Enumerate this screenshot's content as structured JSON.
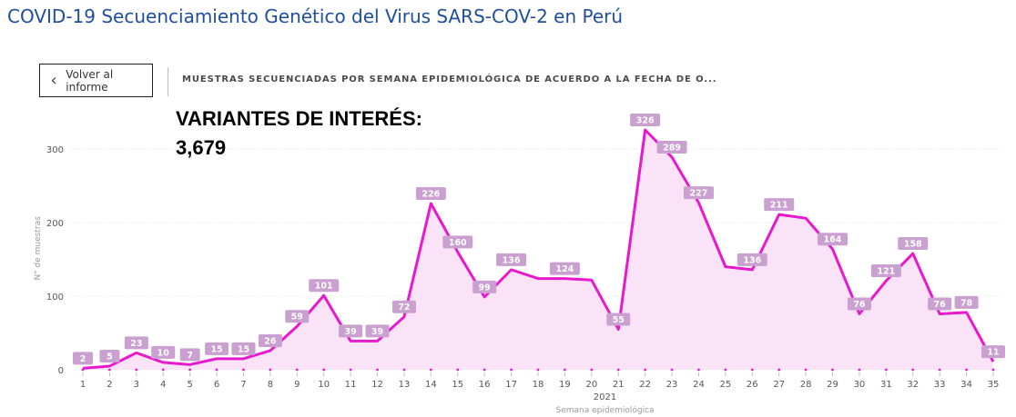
{
  "page": {
    "title": "COVID-19 Secuenciamiento Genético del Virus SARS-COV-2 en Perú"
  },
  "nav": {
    "back_label": "Volver al informe",
    "back_icon": "chevron-left-icon"
  },
  "visual": {
    "title": "MUESTRAS SECUENCIADAS POR SEMANA EPIDEMIOLÓGICA DE ACUERDO A LA FECHA DE O..."
  },
  "kpi": {
    "label": "VARIANTES DE INTERÉS:",
    "value": "3,679"
  },
  "chart_data": {
    "type": "area",
    "title": "",
    "xlabel": "Semana epidemiológica",
    "xlabel_group": "2021",
    "ylabel": "N° de muestras",
    "x": [
      1,
      2,
      3,
      4,
      5,
      6,
      7,
      8,
      9,
      10,
      11,
      12,
      13,
      14,
      15,
      16,
      17,
      18,
      19,
      20,
      21,
      22,
      23,
      24,
      25,
      26,
      27,
      28,
      29,
      30,
      31,
      32,
      33,
      34,
      35
    ],
    "series": [
      {
        "values": [
          2,
          5,
          23,
          10,
          7,
          15,
          15,
          26,
          59,
          101,
          39,
          39,
          72,
          226,
          160,
          99,
          136,
          124,
          124,
          122,
          55,
          326,
          289,
          227,
          140,
          136,
          211,
          206,
          164,
          76,
          121,
          158,
          76,
          78,
          11
        ],
        "labels": [
          "2",
          "5",
          "23",
          "10",
          "7",
          "15",
          "15",
          "26",
          "59",
          "101",
          "39",
          "39",
          "72",
          "226",
          "160",
          "99",
          "136",
          "",
          "124",
          "",
          "55",
          "326",
          "289",
          "227",
          "",
          "136",
          "211",
          "",
          "164",
          "76",
          "121",
          "158",
          "76",
          "78",
          "11"
        ]
      }
    ],
    "ylim": [
      0,
      340
    ],
    "yticks": [
      0,
      100,
      200,
      300
    ],
    "grid": true,
    "colors": {
      "line": "#e619cf",
      "fill": "#fbe3f7",
      "label_bg": "#c9a0cf",
      "gridline": "#e3e3e3"
    }
  }
}
